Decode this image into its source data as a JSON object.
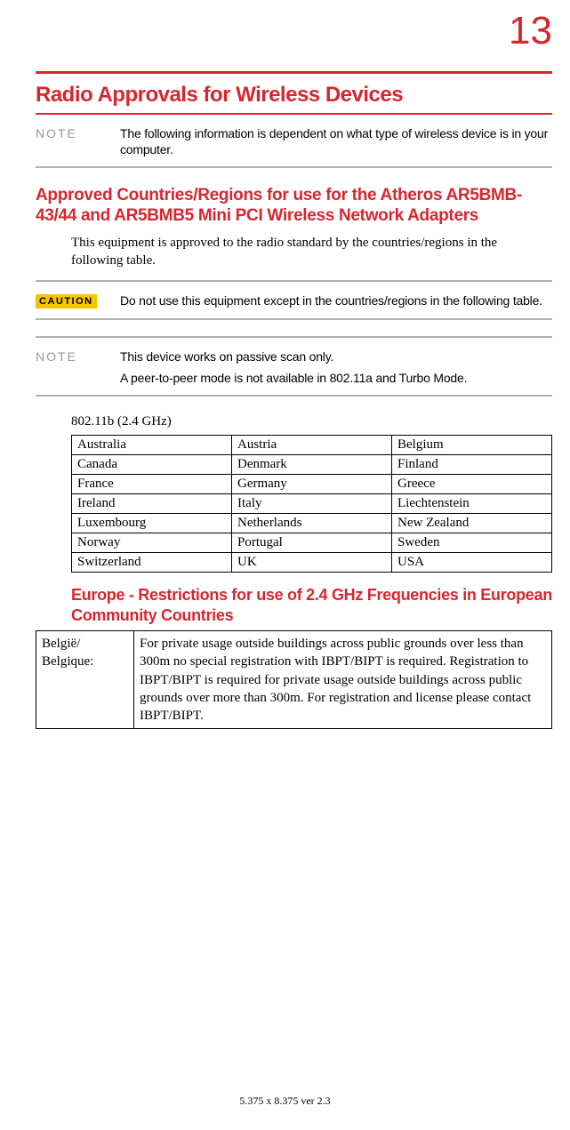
{
  "page_number": "13",
  "title_main": "Radio Approvals for Wireless Devices",
  "note1": {
    "label": "NOTE",
    "text": "The following information is dependent on what type of wireless device is in your computer."
  },
  "section1": {
    "heading": "Approved Countries/Regions for use for the Atheros AR5BMB-43/44 and AR5BMB5 Mini PCI Wireless Network Adapters",
    "body": "This equipment is approved to the radio standard by the countries/regions in the following table."
  },
  "caution": {
    "label": "CAUTION",
    "text": "Do not use this equipment except in the countries/regions in the following table."
  },
  "note2": {
    "label": "NOTE",
    "line1": "This device works on passive scan only.",
    "line2": "A peer-to-peer mode is not available in 802.11a and Turbo Mode."
  },
  "spec": "802.11b (2.4 GHz)",
  "countries": {
    "rows": [
      [
        "Australia",
        "Austria",
        "Belgium"
      ],
      [
        "Canada",
        "Denmark",
        "Finland"
      ],
      [
        "France",
        "Germany",
        "Greece"
      ],
      [
        "Ireland",
        "Italy",
        "Liechtenstein"
      ],
      [
        "Luxembourg",
        "Netherlands",
        "New Zealand"
      ],
      [
        "Norway",
        "Portugal",
        "Sweden"
      ],
      [
        "Switzerland",
        "UK",
        "USA"
      ]
    ]
  },
  "section2": {
    "heading": "Europe - Restrictions for use of 2.4 GHz Frequencies in European Community Countries"
  },
  "restrictions": {
    "rows": [
      {
        "key": "België/\nBelgique:",
        "value": "For private usage outside buildings across public grounds over less than 300m no special registration with IBPT/BIPT is required. Registration to IBPT/BIPT is required for private usage outside buildings across public grounds over more than 300m. For registration and license please contact IBPT/BIPT."
      }
    ]
  },
  "footer": "5.375 x 8.375 ver 2.3"
}
